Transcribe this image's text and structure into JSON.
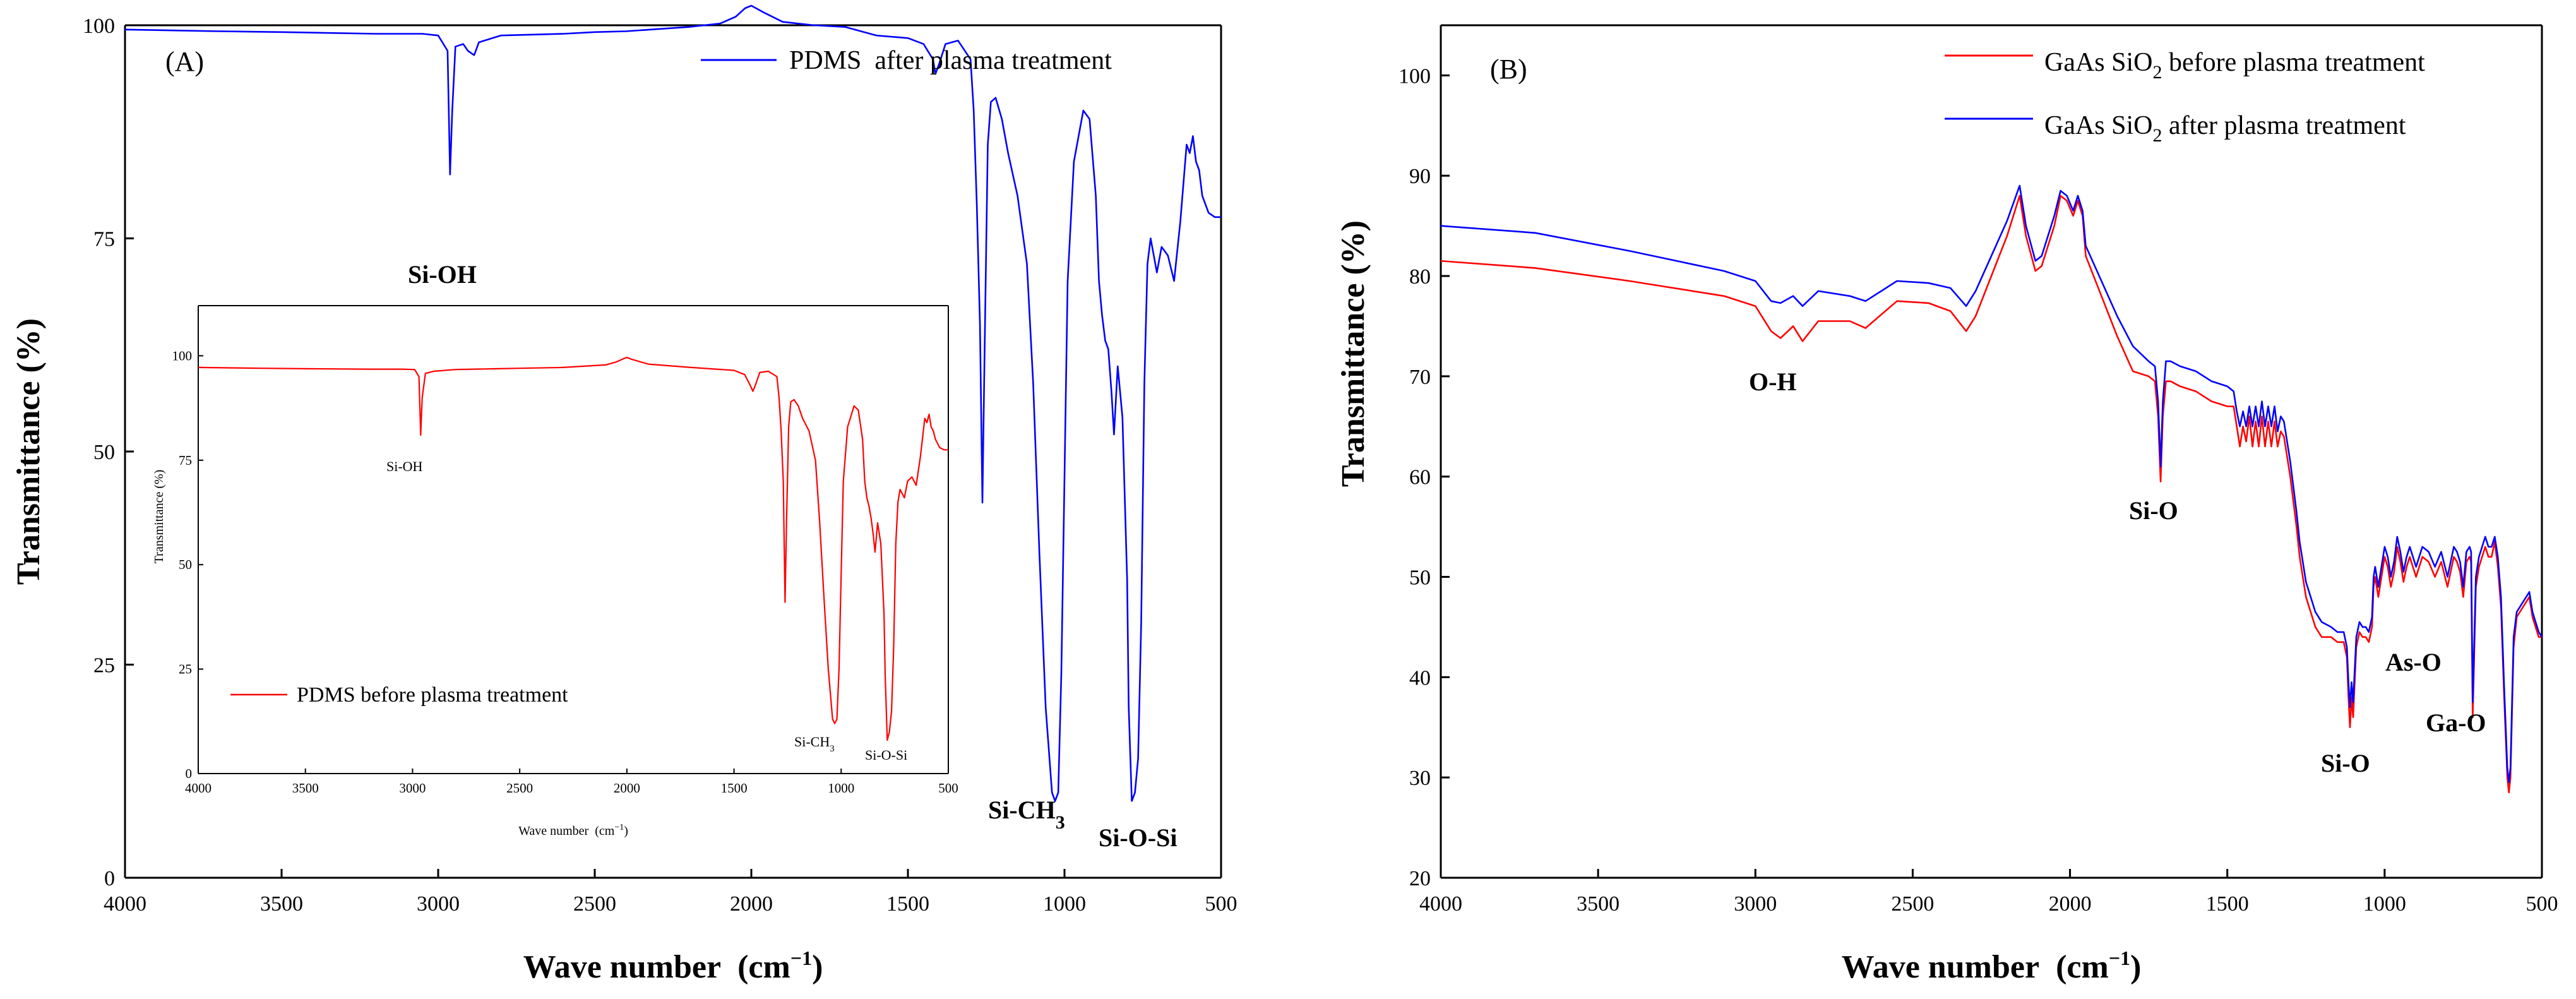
{
  "chart_data": [
    {
      "type": "line",
      "panel_label": "(A)",
      "xlabel": "Wave number",
      "xlabel_unit": "(cm",
      "xlabel_unit_sup": "−1",
      "xlabel_unit_close": ")",
      "ylabel": "Transmittance (%)",
      "xlim": [
        4000,
        500
      ],
      "ylim": [
        0,
        100
      ],
      "xticks": [
        "4000",
        "3500",
        "3000",
        "2500",
        "2000",
        "1500",
        "1000",
        "500"
      ],
      "yticks": [
        "0",
        "25",
        "50",
        "75",
        "100"
      ],
      "legend_position": "top-right",
      "series": [
        {
          "name": "PDMS  after plasma treatment",
          "color": "#0000ff",
          "x": [
            4000,
            3700,
            3500,
            3200,
            3050,
            3000,
            2970,
            2962,
            2955,
            2945,
            2920,
            2905,
            2885,
            2870,
            2800,
            2600,
            2500,
            2400,
            2200,
            2100,
            2050,
            2020,
            2000,
            1960,
            1900,
            1800,
            1700,
            1600,
            1500,
            1450,
            1420,
            1412,
            1400,
            1380,
            1340,
            1300,
            1290,
            1280,
            1270,
            1262,
            1255,
            1245,
            1235,
            1220,
            1200,
            1180,
            1150,
            1120,
            1100,
            1080,
            1060,
            1040,
            1030,
            1020,
            1010,
            1000,
            990,
            970,
            940,
            920,
            900,
            890,
            880,
            870,
            860,
            850,
            842,
            830,
            815,
            800,
            795,
            785,
            775,
            765,
            755,
            745,
            735,
            725,
            715,
            705,
            690,
            670,
            650,
            630,
            610,
            600,
            590,
            580,
            570,
            560,
            540,
            520,
            500
          ],
          "y": [
            99.5,
            99.3,
            99.2,
            99.0,
            99.0,
            98.8,
            97,
            82.5,
            90,
            97.5,
            97.8,
            97,
            96.5,
            98,
            98.8,
            99.0,
            99.2,
            99.3,
            99.8,
            100.2,
            101,
            102,
            102.3,
            101.5,
            100.4,
            100.0,
            99.8,
            98.8,
            98.5,
            97.8,
            96,
            94.3,
            95.5,
            97.8,
            98.2,
            96,
            90,
            79,
            65,
            44,
            62,
            86,
            91,
            91.5,
            89,
            85,
            80,
            72,
            58,
            38,
            20,
            10,
            9,
            10,
            24,
            47,
            70,
            84,
            90,
            89,
            80,
            70,
            66,
            63,
            62,
            57,
            52,
            60,
            54,
            35,
            20,
            9,
            10,
            14,
            30,
            58,
            72,
            75,
            73,
            71,
            74,
            73,
            70,
            77,
            86,
            85,
            87,
            84,
            83,
            80,
            78,
            77.5,
            77.5
          ]
        }
      ],
      "annotations": [
        {
          "text": "Si-OH",
          "x": 2962,
          "y": 78
        },
        {
          "text": "Si-CH",
          "sub": "3",
          "x": 1000,
          "y": 7
        },
        {
          "text": "Si-O-Si",
          "x": 780,
          "y": 1
        }
      ],
      "inset": {
        "type": "line",
        "xlabel": "Wave number",
        "xlabel_unit": "(cm",
        "xlabel_unit_sup": "−1",
        "xlabel_unit_close": ")",
        "ylabel": "Transmittance (%)",
        "xlim": [
          4000,
          500
        ],
        "ylim": [
          0,
          112
        ],
        "xticks": [
          "4000",
          "3500",
          "3000",
          "2500",
          "2000",
          "1500",
          "1000",
          "500"
        ],
        "yticks": [
          "0",
          "25",
          "50",
          "75",
          "100"
        ],
        "legend_position": "bottom-left",
        "series": [
          {
            "name": "PDMS before plasma treatment",
            "color": "#ff0000",
            "x": [
              4000,
              3700,
              3500,
              3200,
              3050,
              2990,
              2970,
              2962,
              2955,
              2940,
              2900,
              2800,
              2600,
              2500,
              2300,
              2100,
              2050,
              2020,
              2000,
              1980,
              1900,
              1700,
              1500,
              1450,
              1425,
              1412,
              1400,
              1380,
              1340,
              1300,
              1290,
              1280,
              1270,
              1262,
              1255,
              1245,
              1235,
              1220,
              1200,
              1180,
              1150,
              1120,
              1100,
              1080,
              1060,
              1040,
              1030,
              1020,
              1010,
              1000,
              990,
              970,
              940,
              920,
              900,
              890,
              880,
              870,
              860,
              850,
              842,
              830,
              815,
              800,
              795,
              785,
              775,
              765,
              755,
              745,
              735,
              725,
              715,
              705,
              690,
              670,
              650,
              630,
              610,
              600,
              590,
              580,
              570,
              560,
              540,
              520,
              500
            ],
            "y": [
              97.2,
              97.0,
              96.9,
              96.8,
              96.8,
              96.7,
              95,
              81,
              90,
              95.8,
              96.3,
              96.7,
              96.9,
              97.0,
              97.2,
              97.8,
              98.5,
              99.2,
              99.6,
              99.2,
              98.0,
              97.2,
              96.5,
              95.5,
              93,
              91.5,
              93,
              96,
              96.3,
              95,
              90,
              82,
              70,
              41,
              60,
              83,
              89,
              89.5,
              88,
              85,
              82,
              75,
              60,
              42,
              25,
              13,
              12,
              13,
              25,
              48,
              70,
              83,
              88,
              87,
              80,
              70,
              66,
              64,
              61,
              57,
              53,
              60,
              55,
              38,
              24,
              8,
              10,
              15,
              30,
              55,
              65,
              68,
              67,
              66,
              70,
              71,
              69,
              76,
              85,
              84,
              86,
              83,
              82,
              80,
              78,
              77.5,
              77.5
            ]
          }
        ],
        "annotations": [
          {
            "text": "Si-OH",
            "x": 2962,
            "y": 72
          },
          {
            "text": "Si-CH",
            "sub": "3",
            "x": 1050,
            "y": 6
          },
          {
            "text": "Si-O-Si",
            "x": 780,
            "y": 4
          }
        ]
      }
    },
    {
      "type": "line",
      "panel_label": "(B)",
      "xlabel": "Wave number",
      "xlabel_unit": "(cm",
      "xlabel_unit_sup": "−1",
      "xlabel_unit_close": ")",
      "ylabel": "Transmittance (%)",
      "xlim": [
        4000,
        500
      ],
      "ylim": [
        20,
        105
      ],
      "xticks": [
        "4000",
        "3500",
        "3000",
        "2500",
        "2000",
        "1500",
        "1000",
        "500"
      ],
      "yticks": [
        "20",
        "30",
        "40",
        "50",
        "60",
        "70",
        "80",
        "90",
        "100"
      ],
      "legend_position": "top-right",
      "series": [
        {
          "name": "GaAs SiO",
          "name_sub": "2",
          "name_rest": " before plasma treatment",
          "color": "#ff0000",
          "x": [
            4000,
            3700,
            3400,
            3100,
            3000,
            2950,
            2920,
            2880,
            2850,
            2800,
            2700,
            2650,
            2550,
            2450,
            2380,
            2330,
            2300,
            2250,
            2200,
            2160,
            2140,
            2110,
            2090,
            2050,
            2030,
            2010,
            1990,
            1975,
            1960,
            1950,
            1900,
            1850,
            1800,
            1750,
            1730,
            1720,
            1712,
            1705,
            1695,
            1680,
            1650,
            1600,
            1550,
            1500,
            1480,
            1470,
            1460,
            1450,
            1440,
            1430,
            1420,
            1410,
            1400,
            1390,
            1380,
            1370,
            1360,
            1350,
            1340,
            1330,
            1320,
            1300,
            1280,
            1270,
            1250,
            1220,
            1200,
            1170,
            1150,
            1130,
            1120,
            1115,
            1110,
            1105,
            1100,
            1090,
            1080,
            1070,
            1060,
            1050,
            1040,
            1035,
            1030,
            1020,
            1010,
            1000,
            990,
            980,
            970,
            960,
            950,
            940,
            930,
            920,
            900,
            880,
            860,
            840,
            820,
            800,
            780,
            770,
            760,
            750,
            740,
            730,
            725,
            720,
            710,
            700,
            690,
            680,
            670,
            660,
            650,
            640,
            630,
            620,
            610,
            605,
            600,
            590,
            580,
            570,
            560,
            550,
            540,
            530,
            520,
            510,
            500
          ],
          "y": [
            81.5,
            80.8,
            79.5,
            78,
            77,
            74.5,
            73.8,
            75,
            73.5,
            75.5,
            75.5,
            74.8,
            77.5,
            77.3,
            76.5,
            74.5,
            76,
            80,
            84,
            88,
            84,
            80.5,
            81,
            85,
            88,
            87.5,
            86,
            87.5,
            86,
            82,
            78,
            74,
            70.5,
            70,
            69.5,
            66,
            59.5,
            66,
            69.5,
            69.5,
            69,
            68.5,
            67.5,
            67,
            67,
            65,
            63,
            65,
            63.5,
            66,
            63,
            65.5,
            63,
            66,
            63,
            65.5,
            63,
            65.5,
            63,
            64.5,
            64,
            60,
            55,
            52,
            48,
            45,
            44,
            44,
            43.5,
            43.5,
            42,
            38,
            35,
            38,
            36,
            43,
            44.5,
            44,
            44,
            43.5,
            45,
            49,
            50,
            48,
            50,
            52,
            51,
            49,
            50.5,
            53,
            51.5,
            49.5,
            51,
            52,
            50,
            52,
            51.5,
            50,
            51.5,
            49,
            52,
            51.5,
            50.5,
            48,
            51.5,
            52,
            51.5,
            36,
            49,
            51,
            52,
            53,
            52,
            52,
            53.5,
            51,
            47,
            38,
            30,
            28.5,
            30,
            43,
            46,
            46.5,
            47,
            47.5,
            48,
            46,
            45,
            44,
            44
          ]
        },
        {
          "name": "GaAs SiO",
          "name_sub": "2",
          "name_rest": " after plasma treatment",
          "color": "#0000ff",
          "x": [
            4000,
            3700,
            3400,
            3100,
            3000,
            2950,
            2920,
            2880,
            2850,
            2800,
            2700,
            2650,
            2550,
            2450,
            2380,
            2330,
            2300,
            2250,
            2200,
            2160,
            2140,
            2110,
            2090,
            2050,
            2030,
            2010,
            1990,
            1975,
            1960,
            1950,
            1900,
            1850,
            1800,
            1750,
            1730,
            1720,
            1712,
            1705,
            1695,
            1680,
            1650,
            1600,
            1550,
            1500,
            1480,
            1470,
            1460,
            1450,
            1440,
            1430,
            1420,
            1410,
            1400,
            1390,
            1380,
            1370,
            1360,
            1350,
            1340,
            1330,
            1320,
            1300,
            1280,
            1270,
            1250,
            1220,
            1200,
            1170,
            1150,
            1130,
            1120,
            1115,
            1110,
            1105,
            1100,
            1090,
            1080,
            1070,
            1060,
            1050,
            1040,
            1035,
            1030,
            1020,
            1010,
            1000,
            990,
            980,
            970,
            960,
            950,
            940,
            930,
            920,
            900,
            880,
            860,
            840,
            820,
            800,
            780,
            770,
            760,
            750,
            740,
            730,
            725,
            720,
            710,
            700,
            690,
            680,
            670,
            660,
            650,
            640,
            630,
            620,
            610,
            605,
            600,
            590,
            580,
            570,
            560,
            550,
            540,
            530,
            520,
            510,
            500
          ],
          "y": [
            85,
            84.3,
            82.5,
            80.5,
            79.5,
            77.5,
            77.3,
            78,
            77,
            78.5,
            78,
            77.5,
            79.5,
            79.3,
            78.8,
            77,
            78.5,
            82,
            85.5,
            89,
            85,
            81.5,
            82,
            86,
            88.5,
            88,
            86.5,
            88,
            86.5,
            83,
            79.5,
            76,
            73,
            71.5,
            71,
            67.5,
            61,
            67.5,
            71.5,
            71.5,
            71,
            70.5,
            69.5,
            69,
            68.5,
            66.5,
            65,
            66.5,
            65,
            67,
            65,
            67,
            65,
            67.5,
            65,
            67,
            65,
            67,
            64.5,
            66,
            65.5,
            61.5,
            56.5,
            53.5,
            49.5,
            46.5,
            45.5,
            45,
            44.5,
            44.5,
            43,
            39.5,
            37,
            39.5,
            37.5,
            44,
            45.5,
            45,
            45,
            44.5,
            46,
            50,
            51,
            49,
            51,
            53,
            52,
            50,
            51.5,
            54,
            52.5,
            50.5,
            52,
            53,
            51,
            53,
            52.5,
            51,
            52.5,
            50,
            53,
            52.5,
            51.5,
            49,
            52.5,
            53,
            52.5,
            37.5,
            50,
            52,
            53,
            54,
            53,
            53,
            54,
            52,
            48,
            39,
            31,
            29.5,
            31,
            44,
            46.5,
            47,
            47.5,
            48,
            48.5,
            46.5,
            45.5,
            44.5,
            44
          ]
        }
      ],
      "annotations": [
        {
          "text": "O-H",
          "x": 2850,
          "y": 69.5
        },
        {
          "text": "Si-O",
          "x": 1700,
          "y": 56
        },
        {
          "text": "As-O",
          "x": 940,
          "y": 45.5
        },
        {
          "text": "Si-O",
          "x": 1130,
          "y": 30.5
        },
        {
          "text": "Ga-O",
          "x": 780,
          "y": 33.5
        }
      ]
    }
  ]
}
